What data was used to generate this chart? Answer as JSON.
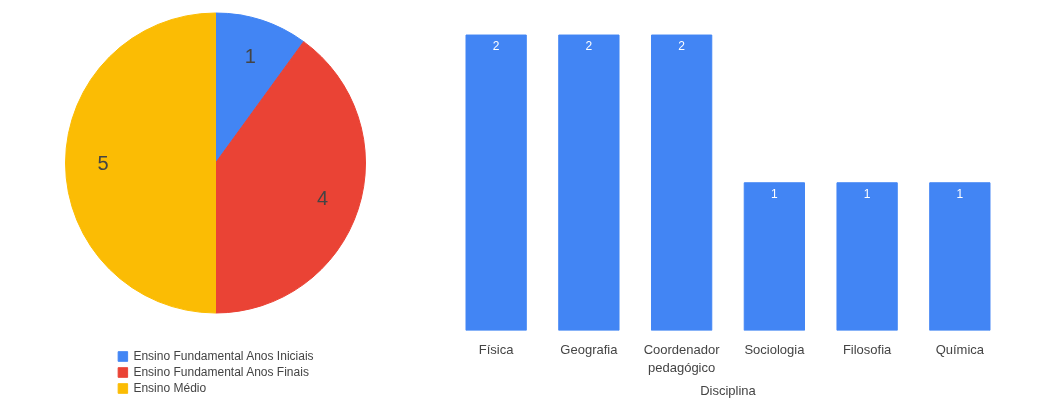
{
  "chart_data": [
    {
      "type": "pie",
      "categories": [
        "Ensino Fundamental Anos Iniciais",
        "Ensino Fundamental Anos Finais",
        "Ensino Médio"
      ],
      "values": [
        1,
        4,
        5
      ],
      "colors": [
        "#4285f4",
        "#ea4335",
        "#fbbc04"
      ],
      "data_labels": true,
      "legend": "bottom"
    },
    {
      "type": "bar",
      "categories": [
        "Física",
        "Geografia",
        "Coordenador pedagógico",
        "Sociologia",
        "Filosofia",
        "Química"
      ],
      "values": [
        2,
        2,
        2,
        1,
        1,
        1
      ],
      "color": "#4285f4",
      "data_labels": true,
      "xlabel": "Disciplina",
      "grid": false
    }
  ]
}
